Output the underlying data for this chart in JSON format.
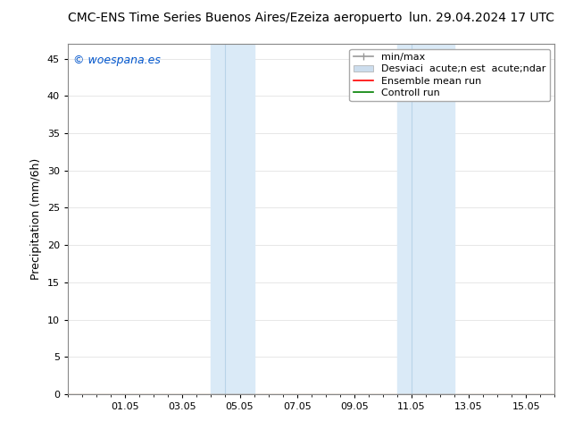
{
  "title_left": "CMC-ENS Time Series Buenos Aires/Ezeiza aeropuerto",
  "title_right": "lun. 29.04.2024 17 UTC",
  "ylabel": "Precipitation (mm/6h)",
  "watermark": "© woespana.es",
  "watermark_color": "#0055cc",
  "ylim": [
    0,
    47
  ],
  "yticks": [
    0,
    5,
    10,
    15,
    20,
    25,
    30,
    35,
    40,
    45
  ],
  "x_tick_positions": [
    2,
    4,
    6,
    8,
    10,
    12,
    14,
    16
  ],
  "x_tick_labels": [
    "01.05",
    "03.05",
    "05.05",
    "07.05",
    "09.05",
    "11.05",
    "13.05",
    "15.05"
  ],
  "xlim": [
    0,
    17
  ],
  "background_color": "#ffffff",
  "plot_bg_color": "#ffffff",
  "shaded_band1_x1": 5.0,
  "shaded_band1_xmid": 5.5,
  "shaded_band1_x2": 6.5,
  "shaded_band2_x1": 11.5,
  "shaded_band2_xmid": 12.0,
  "shaded_band2_x2": 13.5,
  "shaded_color": "#daeaf7",
  "shaded_divider_color": "#b8d4e8",
  "legend_label_minmax": "min/max",
  "legend_label_std": "Desviaci  acute;n est  acute;ndar",
  "legend_label_ens": "Ensemble mean run",
  "legend_label_ctrl": "Controll run",
  "legend_color_minmax": "#999999",
  "legend_color_std": "#ccdded",
  "legend_color_ens": "#ff0000",
  "legend_color_ctrl": "#008000",
  "font_size_title": 10,
  "font_size_labels": 9,
  "font_size_ticks": 8,
  "font_size_legend": 8,
  "font_size_watermark": 9
}
